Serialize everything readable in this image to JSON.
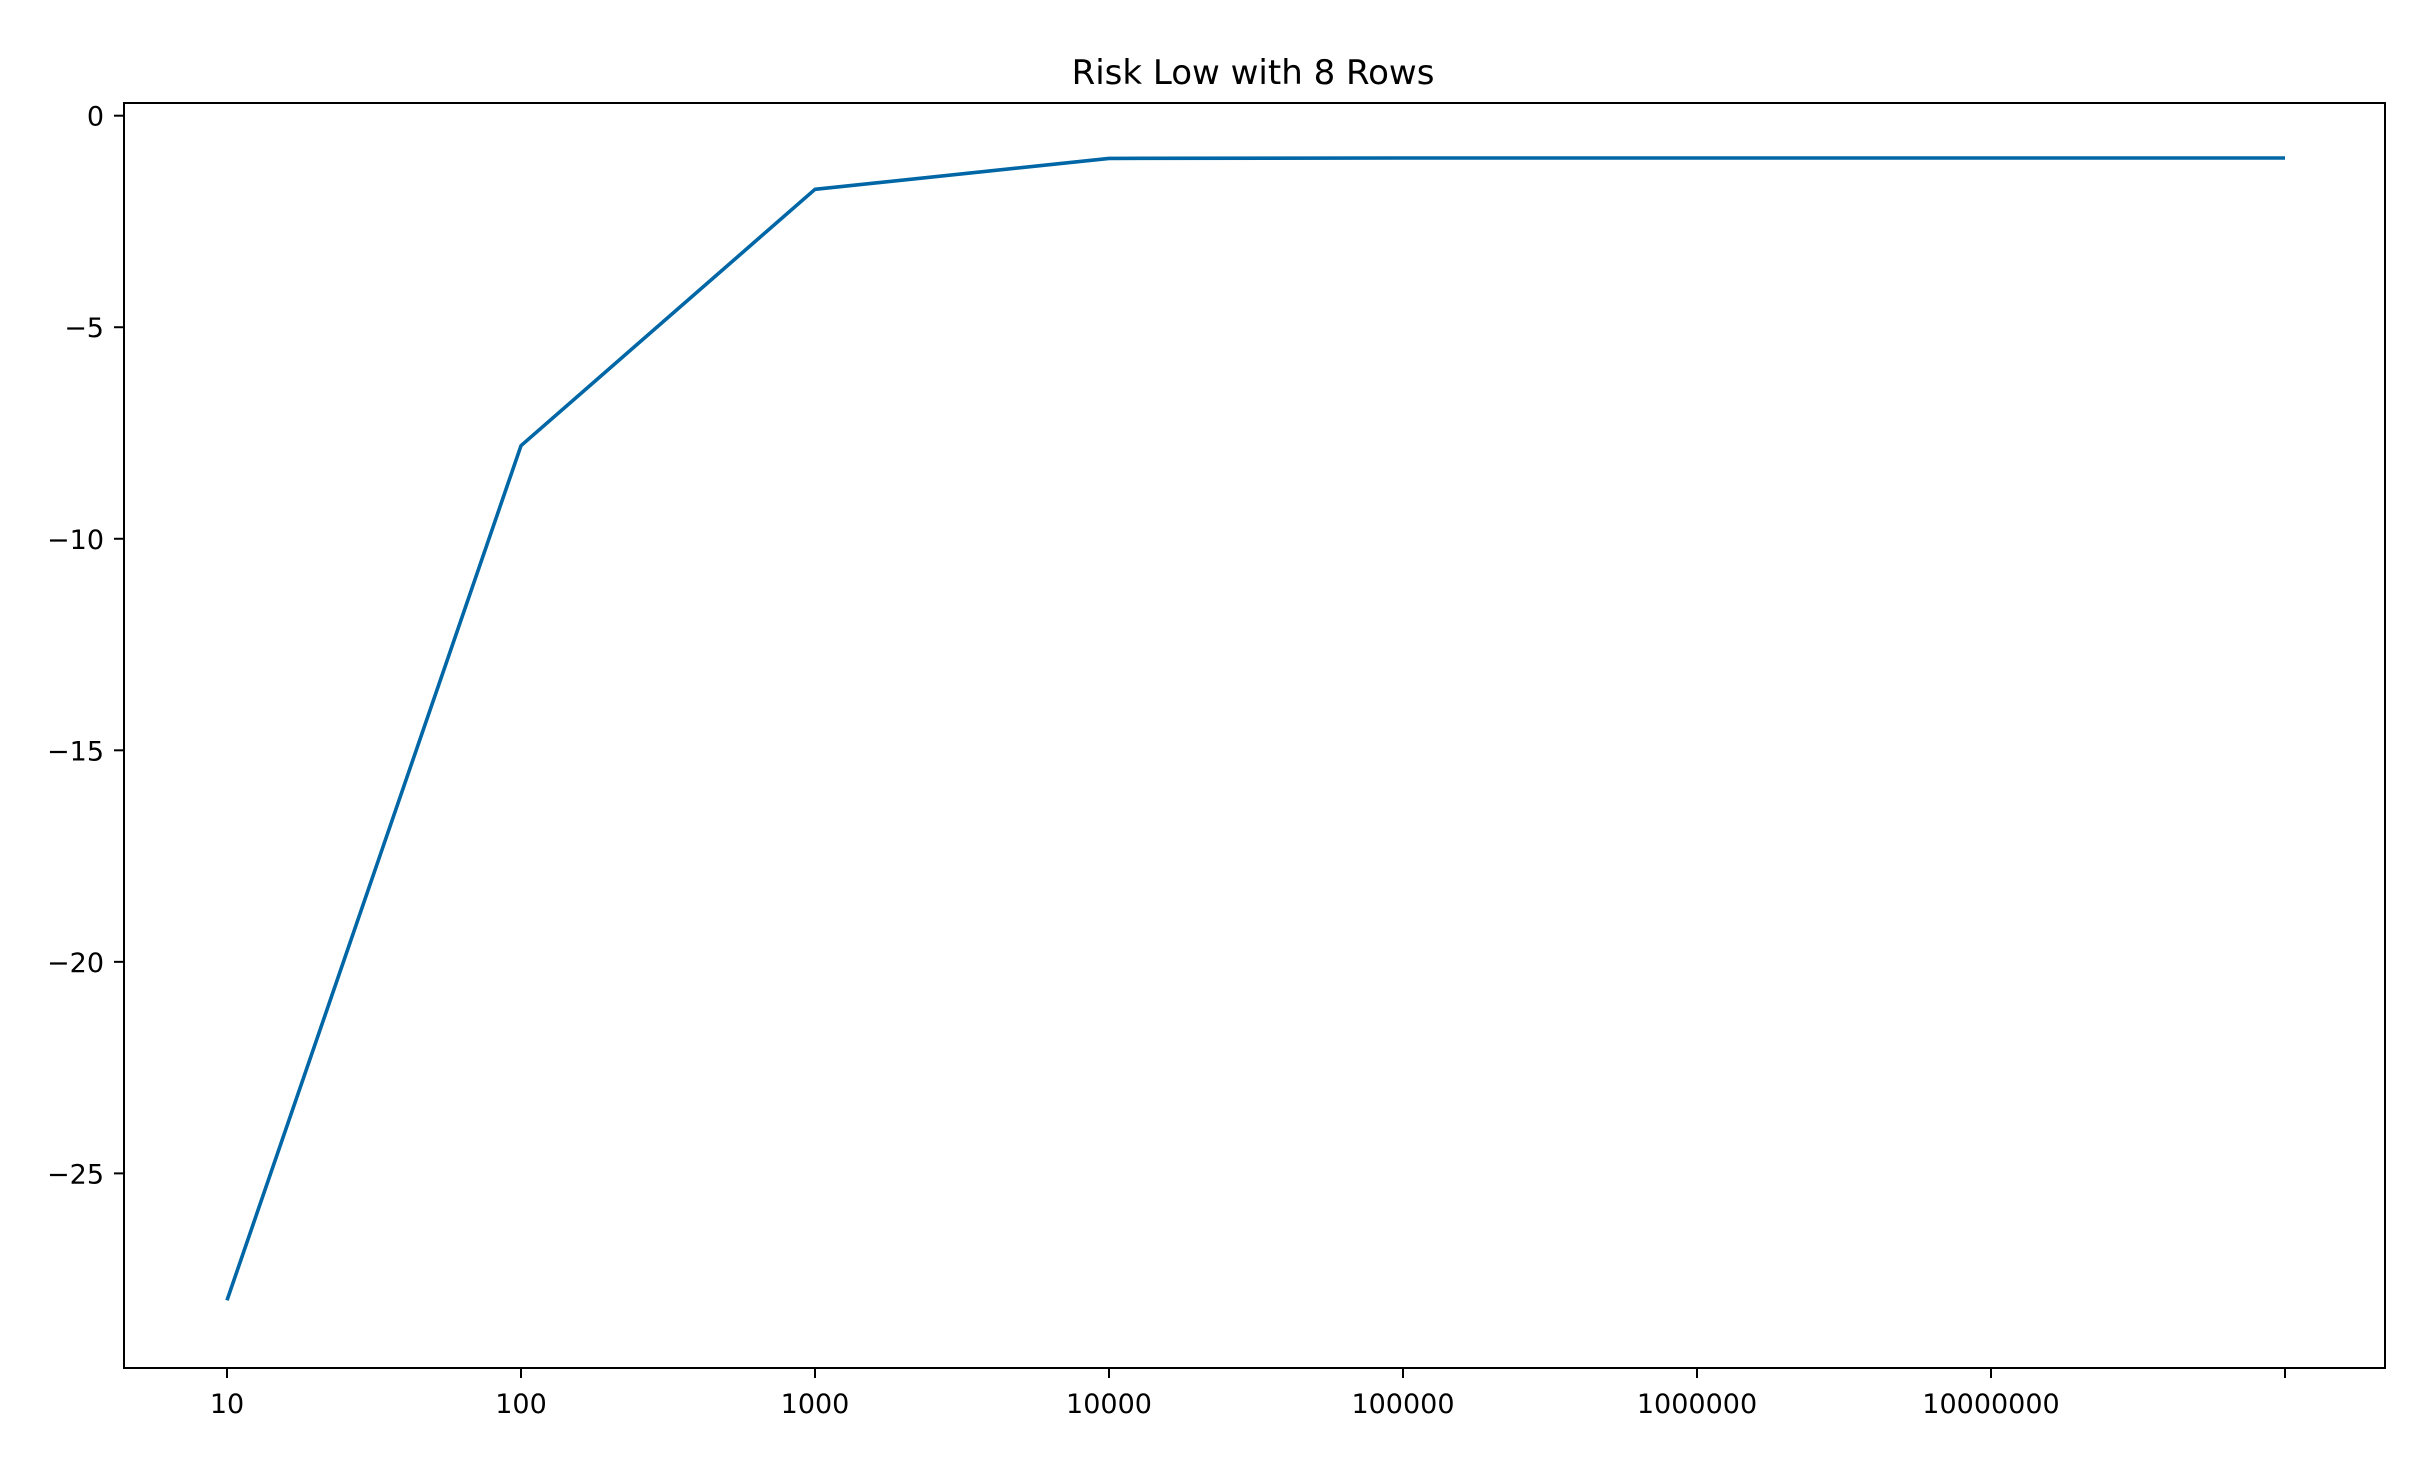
{
  "chart_data": {
    "type": "line",
    "title": "Risk Low with 8 Rows",
    "xlabel": "",
    "ylabel": "",
    "x_scale": "log",
    "x_tick_values": [
      10,
      100,
      1000,
      10000,
      100000,
      1000000,
      10000000,
      100000000
    ],
    "x_tick_labels": [
      "10",
      "100",
      "1000",
      "10000",
      "100000",
      "1000000",
      "10000000",
      ""
    ],
    "y_tick_values": [
      0,
      -5,
      -10,
      -15,
      -20,
      -25
    ],
    "y_tick_labels": [
      "0",
      "−5",
      "−10",
      "−15",
      "−20",
      "−25"
    ],
    "ylim": [
      -29.6,
      0.3
    ],
    "grid": false,
    "series": [
      {
        "color": "#0066a5",
        "x": [
          10,
          100,
          1000,
          10000,
          100000,
          1000000,
          10000000,
          100000000
        ],
        "y": [
          -28.0,
          -7.8,
          -1.74,
          -1.01,
          -1.0,
          -1.0,
          -1.0,
          -1.0
        ]
      }
    ]
  }
}
